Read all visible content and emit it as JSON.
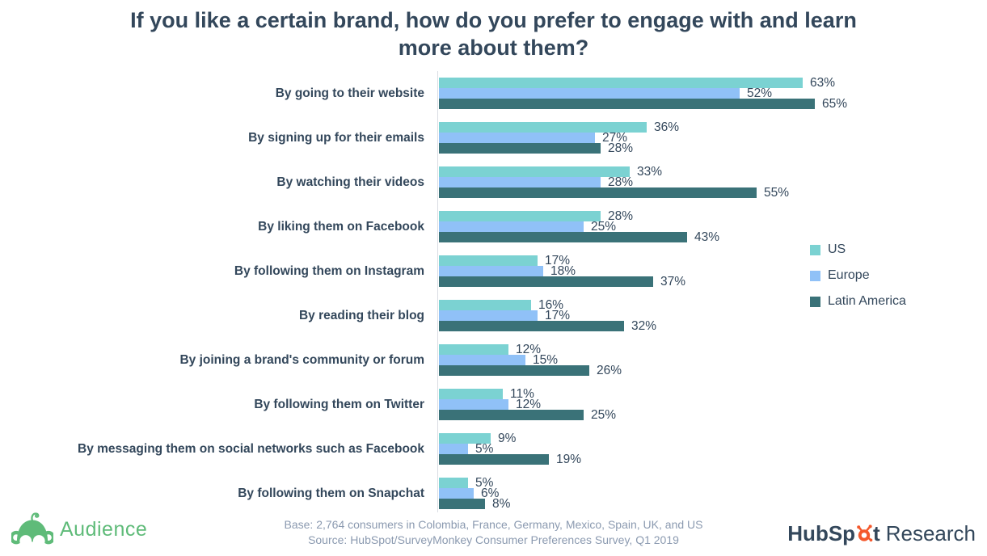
{
  "title": {
    "line1": "If you like a certain brand, how do you prefer to engage with and learn",
    "line2": "more about them?"
  },
  "chart_data": {
    "type": "bar",
    "orientation": "horizontal",
    "title": "If you like a certain brand, how do you prefer to engage with and learn more about them?",
    "categories": [
      "By going to their website",
      "By signing up for their emails",
      "By watching their videos",
      "By liking them on Facebook",
      "By following them on Instagram",
      "By reading their blog",
      "By joining a brand's community or forum",
      "By following them on Twitter",
      "By messaging them on social networks such as Facebook",
      "By following them on Snapchat"
    ],
    "series": [
      {
        "name": "US",
        "color": "#7bd2d2",
        "values": [
          63,
          36,
          33,
          28,
          17,
          16,
          12,
          11,
          9,
          5
        ]
      },
      {
        "name": "Europe",
        "color": "#90c1f7",
        "values": [
          52,
          27,
          28,
          25,
          18,
          17,
          15,
          12,
          5,
          6
        ]
      },
      {
        "name": "Latin America",
        "color": "#3a7278",
        "values": [
          65,
          28,
          55,
          43,
          37,
          32,
          26,
          25,
          19,
          8
        ]
      }
    ],
    "value_suffix": "%",
    "xlim": [
      0,
      100
    ],
    "grid": false,
    "legend_position": "right",
    "value_labels": true
  },
  "footer": {
    "base": "Base: 2,764 consumers in Colombia, France, Germany, Mexico, Spain, UK, and US",
    "source": "Source: HubSpot/SurveyMonkey Consumer Preferences Survey, Q1 2019"
  },
  "branding": {
    "audience_label": "Audience",
    "audience_color": "#5fbb79",
    "hubspot_part1": "HubSp",
    "hubspot_part2": "t",
    "hubspot_research": "Research",
    "hubspot_orange": "#f4582c",
    "navy": "#33475b"
  }
}
